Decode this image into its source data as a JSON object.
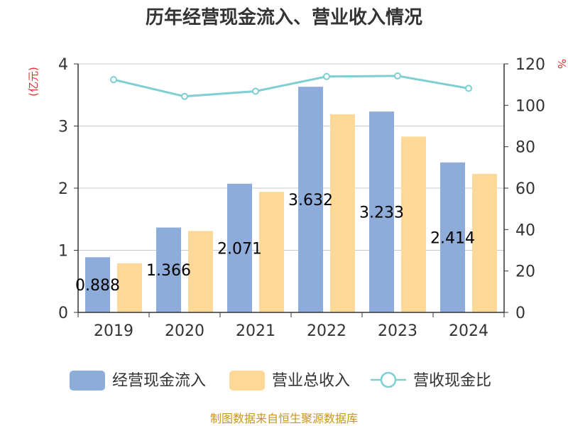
{
  "chart_data": {
    "type": "bar",
    "title": "历年经营现金流入、营业收入情况",
    "categories": [
      "2019",
      "2020",
      "2021",
      "2022",
      "2023",
      "2024"
    ],
    "series": [
      {
        "name": "经营现金流入",
        "kind": "bar",
        "axis": "left",
        "color": "#8eacda",
        "values": [
          0.888,
          1.366,
          2.071,
          3.632,
          3.233,
          2.414
        ]
      },
      {
        "name": "营业总收入",
        "kind": "bar",
        "axis": "left",
        "color": "#fdd897",
        "values": [
          0.79,
          1.31,
          1.94,
          3.19,
          2.83,
          2.23
        ]
      },
      {
        "name": "营收现金比",
        "kind": "line",
        "axis": "right",
        "color": "#7ecfd2",
        "values": [
          112.4,
          104.3,
          106.8,
          113.9,
          114.2,
          108.2
        ]
      }
    ],
    "data_labels": [
      "0.888",
      "1.366",
      "2.071",
      "3.632",
      "3.233",
      "2.414"
    ],
    "yleft": {
      "label": "(亿元)",
      "ylim": [
        0,
        4
      ],
      "ticks": [
        "0",
        "1",
        "2",
        "3",
        "4"
      ],
      "tick_values": [
        0,
        1,
        2,
        3,
        4
      ]
    },
    "yright": {
      "label": "%",
      "ylim": [
        0,
        120
      ],
      "ticks": [
        "0",
        "20",
        "40",
        "60",
        "80",
        "100",
        "120"
      ],
      "tick_values": [
        0,
        20,
        40,
        60,
        80,
        100,
        120
      ]
    },
    "grid": true,
    "legend_position": "bottom",
    "source": "制图数据来自恒生聚源数据库"
  }
}
